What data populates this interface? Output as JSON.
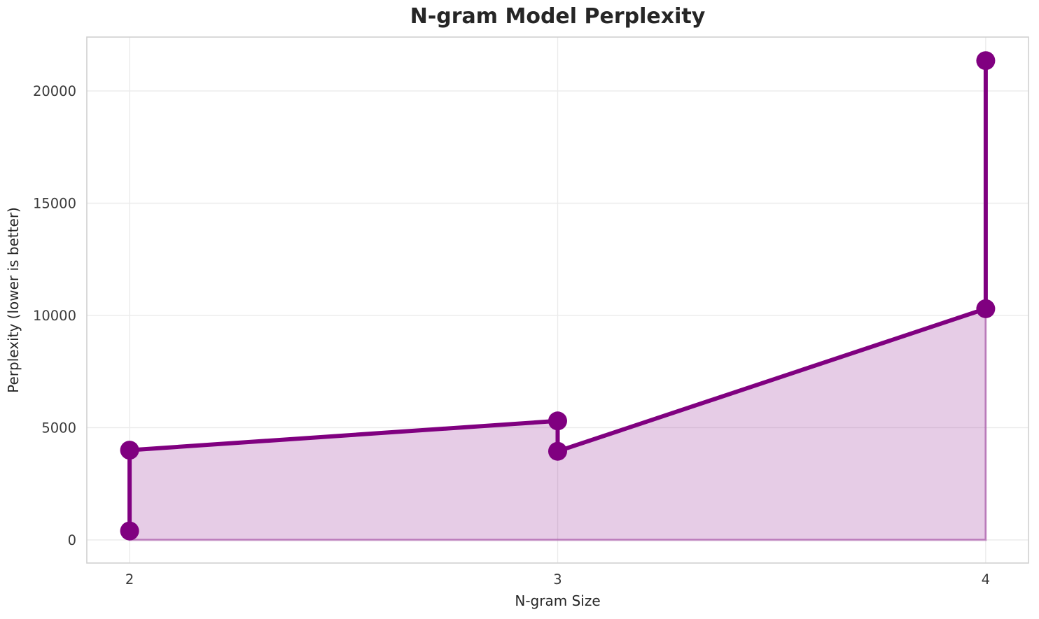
{
  "chart_data": {
    "type": "line",
    "title": "N-gram Model Perplexity",
    "xlabel": "N-gram Size",
    "ylabel": "Perplexity (lower is better)",
    "series": [
      {
        "name": "perplexity",
        "x": [
          2,
          2,
          3,
          3,
          4,
          4
        ],
        "y": [
          400,
          4000,
          5300,
          3950,
          10300,
          21350
        ],
        "color": "#800080",
        "marker": "o",
        "fill_to_zero": true
      }
    ],
    "x_ticks": [
      "2",
      "3",
      "4"
    ],
    "x_tick_values": [
      2,
      3,
      4
    ],
    "y_ticks": [
      "0",
      "5000",
      "10000",
      "15000",
      "20000"
    ],
    "y_tick_values": [
      0,
      5000,
      10000,
      15000,
      20000
    ],
    "xlim": [
      1.9,
      4.1
    ],
    "ylim": [
      -1030,
      22400
    ],
    "grid": true,
    "legend_position": "none"
  },
  "colors": {
    "line": "#800080",
    "fill": "rgba(128,0,128,0.2)",
    "fill_edge": "rgba(128,0,128,0.38)",
    "grid": "#ebebeb",
    "spine": "#d0d0d0",
    "text": "#262626"
  }
}
